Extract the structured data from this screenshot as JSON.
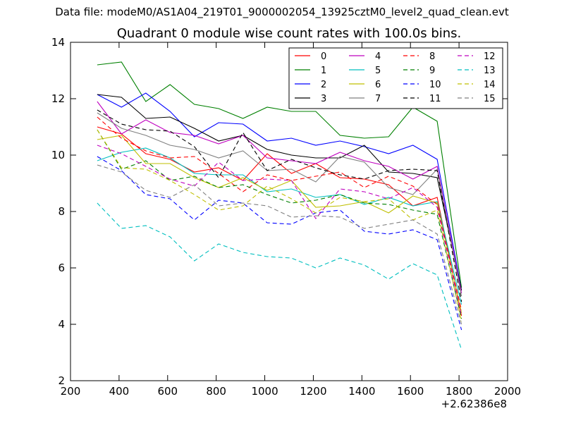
{
  "figure": {
    "suptitle": "Data file: modeM0/AS1A04_219T01_9000002054_13925cztM0_level2_quad_clean.evt"
  },
  "chart_data": {
    "type": "line",
    "title": "Quadrant 0 module wise count rates with 100.0s bins.",
    "xlabel": "",
    "ylabel": "",
    "x_offset_label": "+2.62386e8",
    "xlim": [
      200,
      2000
    ],
    "ylim": [
      2,
      14
    ],
    "xticks": [
      "200",
      "400",
      "600",
      "800",
      "1000",
      "1200",
      "1400",
      "1600",
      "1800",
      "2000"
    ],
    "yticks": [
      "2",
      "4",
      "6",
      "8",
      "10",
      "12",
      "14"
    ],
    "legend_position": "top-right",
    "grid": false,
    "x": [
      310,
      410,
      510,
      610,
      710,
      810,
      910,
      1010,
      1110,
      1210,
      1310,
      1410,
      1510,
      1610,
      1710,
      1810
    ],
    "series": [
      {
        "name": "0",
        "color": "#ff0000",
        "dash": false,
        "values": [
          11.0,
          10.75,
          10.05,
          9.85,
          9.4,
          9.55,
          9.1,
          10.05,
          9.35,
          9.7,
          9.2,
          9.15,
          8.95,
          8.2,
          8.5,
          4.3
        ]
      },
      {
        "name": "1",
        "color": "#008000",
        "dash": false,
        "values": [
          13.2,
          13.3,
          11.9,
          12.5,
          11.8,
          11.65,
          11.3,
          11.7,
          11.55,
          11.55,
          10.7,
          10.6,
          10.65,
          11.7,
          11.2,
          5.3
        ]
      },
      {
        "name": "2",
        "color": "#0000ff",
        "dash": false,
        "values": [
          12.15,
          11.7,
          12.2,
          11.55,
          10.65,
          11.15,
          11.1,
          10.5,
          10.6,
          10.35,
          10.5,
          10.3,
          10.05,
          10.35,
          9.85,
          5.2
        ]
      },
      {
        "name": "3",
        "color": "#000000",
        "dash": false,
        "values": [
          12.15,
          12.05,
          11.3,
          11.35,
          10.95,
          10.5,
          10.7,
          10.2,
          10.0,
          9.9,
          9.9,
          10.35,
          9.4,
          9.35,
          9.2,
          5.2
        ]
      },
      {
        "name": "4",
        "color": "#bf00bf",
        "dash": false,
        "values": [
          11.9,
          10.75,
          11.25,
          10.8,
          10.7,
          10.4,
          10.7,
          9.9,
          9.8,
          9.7,
          10.1,
          9.8,
          9.6,
          9.15,
          9.6,
          5.1
        ]
      },
      {
        "name": "5",
        "color": "#00bfbf",
        "dash": false,
        "values": [
          9.8,
          10.1,
          10.25,
          9.9,
          9.35,
          9.3,
          9.3,
          8.7,
          8.8,
          8.5,
          8.6,
          8.25,
          8.5,
          8.2,
          8.35,
          4.7
        ]
      },
      {
        "name": "6",
        "color": "#bfbf00",
        "dash": false,
        "values": [
          10.55,
          10.7,
          9.7,
          9.7,
          9.2,
          8.85,
          9.2,
          8.75,
          9.1,
          8.15,
          8.2,
          8.35,
          7.95,
          8.55,
          8.3,
          4.4
        ]
      },
      {
        "name": "7",
        "color": "#808080",
        "dash": false,
        "values": [
          11.5,
          10.95,
          10.7,
          10.35,
          10.2,
          9.9,
          10.15,
          9.45,
          9.5,
          9.05,
          9.95,
          9.75,
          8.85,
          8.6,
          9.5,
          5.0
        ]
      },
      {
        "name": "8",
        "color": "#ff0000",
        "dash": true,
        "values": [
          11.35,
          10.6,
          10.15,
          9.9,
          9.95,
          9.35,
          8.7,
          9.3,
          9.1,
          9.25,
          9.4,
          8.85,
          9.25,
          8.9,
          8.25,
          4.5
        ]
      },
      {
        "name": "9",
        "color": "#008000",
        "dash": true,
        "values": [
          10.9,
          9.5,
          9.8,
          9.1,
          9.25,
          8.85,
          8.95,
          8.6,
          8.3,
          8.4,
          8.6,
          8.3,
          8.25,
          8.05,
          7.9,
          4.2
        ]
      },
      {
        "name": "10",
        "color": "#0000ff",
        "dash": true,
        "values": [
          9.95,
          9.45,
          8.6,
          8.45,
          7.7,
          8.4,
          8.3,
          7.6,
          7.55,
          7.95,
          8.05,
          7.3,
          7.2,
          7.35,
          7.0,
          3.8
        ]
      },
      {
        "name": "11",
        "color": "#000000",
        "dash": true,
        "values": [
          11.6,
          11.1,
          10.9,
          10.85,
          10.3,
          9.2,
          10.8,
          9.45,
          9.85,
          9.55,
          9.3,
          9.15,
          9.45,
          9.5,
          9.45,
          4.8
        ]
      },
      {
        "name": "12",
        "color": "#bf00bf",
        "dash": true,
        "values": [
          10.35,
          10.05,
          9.6,
          9.15,
          8.9,
          9.75,
          9.1,
          9.15,
          9.1,
          7.75,
          8.8,
          8.7,
          8.45,
          8.85,
          8.15,
          4.3
        ]
      },
      {
        "name": "13",
        "color": "#00bfbf",
        "dash": true,
        "values": [
          8.3,
          7.4,
          7.5,
          7.1,
          6.25,
          6.85,
          6.55,
          6.4,
          6.35,
          6.0,
          6.35,
          6.1,
          5.6,
          6.15,
          5.75,
          3.1
        ]
      },
      {
        "name": "14",
        "color": "#bfbf00",
        "dash": true,
        "values": [
          10.9,
          9.55,
          9.5,
          9.1,
          8.6,
          8.05,
          8.2,
          8.9,
          8.45,
          7.95,
          8.5,
          8.35,
          8.45,
          7.7,
          8.05,
          4.1
        ]
      },
      {
        "name": "15",
        "color": "#808080",
        "dash": true,
        "values": [
          9.65,
          9.4,
          8.75,
          8.5,
          8.95,
          8.2,
          8.3,
          8.2,
          7.8,
          7.85,
          7.8,
          7.4,
          7.55,
          7.7,
          7.2,
          4.0
        ]
      }
    ]
  }
}
